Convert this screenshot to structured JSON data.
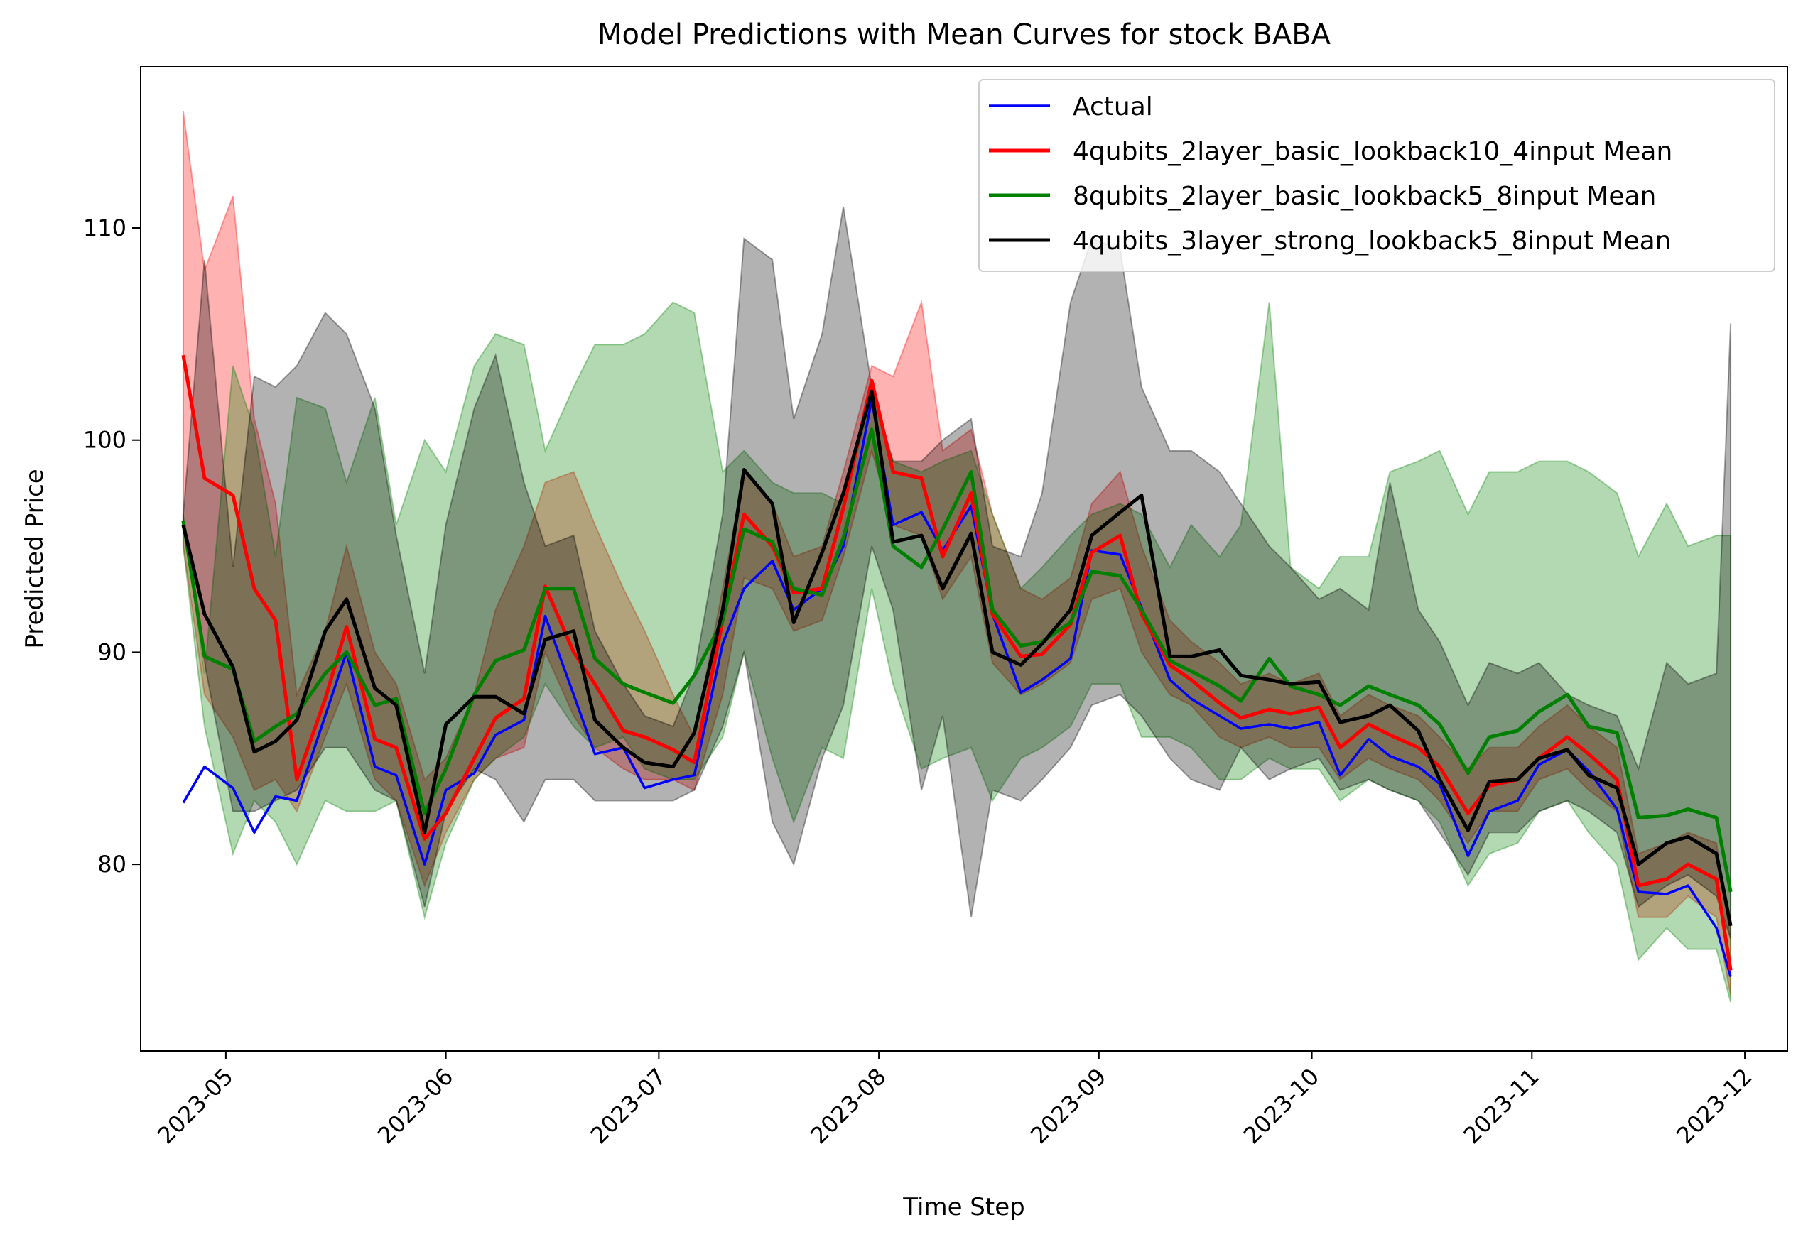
{
  "chart_data": {
    "type": "line",
    "title": "Model Predictions with Mean Curves for stock BABA",
    "xlabel": "Time Step",
    "ylabel": "Predicted Price",
    "x_ticks": [
      "2023-05",
      "2023-06",
      "2023-07",
      "2023-08",
      "2023-09",
      "2023-10",
      "2023-11",
      "2023-12"
    ],
    "y_ticks": [
      80,
      90,
      100,
      110
    ],
    "xlim": [
      "2023-04-19",
      "2023-12-07"
    ],
    "ylim": [
      71.2,
      117.6
    ],
    "legend_position": "top-right",
    "grid": false,
    "band_opacity": 0.3,
    "x": [
      "2023-04-25",
      "2023-04-28",
      "2023-05-02",
      "2023-05-05",
      "2023-05-08",
      "2023-05-11",
      "2023-05-15",
      "2023-05-18",
      "2023-05-22",
      "2023-05-25",
      "2023-05-29",
      "2023-06-01",
      "2023-06-05",
      "2023-06-08",
      "2023-06-12",
      "2023-06-15",
      "2023-06-19",
      "2023-06-22",
      "2023-06-26",
      "2023-06-29",
      "2023-07-03",
      "2023-07-06",
      "2023-07-10",
      "2023-07-13",
      "2023-07-17",
      "2023-07-20",
      "2023-07-24",
      "2023-07-27",
      "2023-07-31",
      "2023-08-03",
      "2023-08-07",
      "2023-08-10",
      "2023-08-14",
      "2023-08-17",
      "2023-08-21",
      "2023-08-24",
      "2023-08-28",
      "2023-08-31",
      "2023-09-04",
      "2023-09-07",
      "2023-09-11",
      "2023-09-14",
      "2023-09-18",
      "2023-09-21",
      "2023-09-25",
      "2023-09-28",
      "2023-10-02",
      "2023-10-05",
      "2023-10-09",
      "2023-10-12",
      "2023-10-16",
      "2023-10-19",
      "2023-10-23",
      "2023-10-26",
      "2023-10-30",
      "2023-11-02",
      "2023-11-06",
      "2023-11-09",
      "2023-11-13",
      "2023-11-16",
      "2023-11-20",
      "2023-11-23",
      "2023-11-27",
      "2023-11-29"
    ],
    "series": [
      {
        "name": "Actual",
        "color": "#0000ff",
        "values": [
          82.9,
          84.6,
          83.6,
          81.5,
          83.2,
          83.0,
          87.0,
          90.0,
          84.6,
          84.2,
          80.0,
          83.5,
          84.3,
          86.1,
          86.8,
          91.7,
          88.0,
          85.2,
          85.5,
          83.6,
          84.0,
          84.2,
          90.4,
          93.0,
          94.3,
          92.0,
          93.0,
          95.0,
          101.9,
          96.0,
          96.6,
          94.8,
          96.9,
          91.8,
          88.1,
          88.7,
          89.7,
          94.8,
          94.6,
          92.1,
          88.7,
          87.8,
          87.0,
          86.4,
          86.6,
          86.4,
          86.7,
          84.2,
          85.9,
          85.1,
          84.6,
          83.8,
          80.4,
          82.5,
          83.0,
          84.7,
          85.4,
          84.4,
          82.6,
          78.7,
          78.6,
          79.0,
          77.0,
          74.7
        ]
      },
      {
        "name": "4qubits_2layer_basic_lookback10_4input Mean",
        "color": "#ff0000",
        "values": [
          104.0,
          98.2,
          97.4,
          93.0,
          91.5,
          84.0,
          87.8,
          91.2,
          85.9,
          85.5,
          81.2,
          82.4,
          85.0,
          86.9,
          87.8,
          93.1,
          90.0,
          88.5,
          86.3,
          86.0,
          85.4,
          84.8,
          91.5,
          96.5,
          95.0,
          92.8,
          93.0,
          96.8,
          102.8,
          98.5,
          98.2,
          94.5,
          97.5,
          91.8,
          89.8,
          89.9,
          91.3,
          94.7,
          95.5,
          91.8,
          89.4,
          88.7,
          87.6,
          86.9,
          87.3,
          87.1,
          87.4,
          85.5,
          86.6,
          86.1,
          85.5,
          84.6,
          82.4,
          83.7,
          84.0,
          85.0,
          86.0,
          85.2,
          84.0,
          79.0,
          79.3,
          80.0,
          79.3,
          75.0
        ]
      },
      {
        "name": "8qubits_2layer_basic_lookback5_8input Mean",
        "color": "#008000",
        "values": [
          96.2,
          89.8,
          89.2,
          85.8,
          86.5,
          87.1,
          89.0,
          90.0,
          87.5,
          87.8,
          82.4,
          84.5,
          88.0,
          89.6,
          90.1,
          93.0,
          93.0,
          89.7,
          88.5,
          88.1,
          87.6,
          88.9,
          91.5,
          95.8,
          95.2,
          93.0,
          92.7,
          95.4,
          100.5,
          95.0,
          94.0,
          95.8,
          98.5,
          92.0,
          90.3,
          90.5,
          91.4,
          93.8,
          93.6,
          92.0,
          89.6,
          89.1,
          88.4,
          87.7,
          89.7,
          88.4,
          88.0,
          87.5,
          88.4,
          88.0,
          87.5,
          86.6,
          84.3,
          86.0,
          86.3,
          87.2,
          88.0,
          86.5,
          86.2,
          82.2,
          82.3,
          82.6,
          82.2,
          78.7
        ]
      },
      {
        "name": "4qubits_3layer_strong_lookback5_8input Mean",
        "color": "#000000",
        "values": [
          96.0,
          91.8,
          89.3,
          85.3,
          85.8,
          86.8,
          91.0,
          92.5,
          88.3,
          87.5,
          81.5,
          86.6,
          87.9,
          87.9,
          87.1,
          90.6,
          91.0,
          86.8,
          85.5,
          84.8,
          84.6,
          86.2,
          92.0,
          98.6,
          97.0,
          91.4,
          94.7,
          97.5,
          102.3,
          95.2,
          95.5,
          93.0,
          95.6,
          90.0,
          89.4,
          90.4,
          92.0,
          95.5,
          96.6,
          97.4,
          89.8,
          89.8,
          90.1,
          88.9,
          88.7,
          88.5,
          88.6,
          86.7,
          87.0,
          87.5,
          86.3,
          84.0,
          81.6,
          83.9,
          84.0,
          85.0,
          85.4,
          84.2,
          83.6,
          80.0,
          81.0,
          81.3,
          80.5,
          77.1
        ]
      }
    ],
    "bands": [
      {
        "series": "4qubits_2layer_basic_lookback10_4input Mean",
        "color": "#ff0000",
        "lower": [
          95.0,
          88.0,
          86.0,
          83.5,
          84.0,
          82.5,
          86.0,
          88.5,
          84.0,
          83.0,
          79.0,
          81.5,
          84.0,
          85.0,
          85.5,
          90.0,
          87.0,
          85.5,
          84.5,
          84.0,
          84.0,
          83.5,
          88.0,
          93.5,
          93.0,
          91.0,
          91.5,
          94.5,
          99.5,
          96.0,
          95.5,
          92.5,
          94.5,
          89.5,
          88.0,
          88.5,
          89.5,
          92.5,
          93.0,
          90.0,
          88.0,
          87.5,
          86.0,
          85.5,
          86.0,
          85.5,
          85.5,
          84.0,
          85.0,
          84.5,
          84.0,
          83.0,
          81.0,
          82.5,
          82.5,
          84.0,
          84.5,
          83.5,
          82.5,
          77.5,
          77.5,
          78.5,
          77.5,
          73.8
        ],
        "upper": [
          115.5,
          108.0,
          111.5,
          101.0,
          97.0,
          88.0,
          91.0,
          95.0,
          90.0,
          88.5,
          84.0,
          85.0,
          88.0,
          92.0,
          95.0,
          98.0,
          98.5,
          96.0,
          93.0,
          91.0,
          88.0,
          86.0,
          93.0,
          98.5,
          97.0,
          94.5,
          95.0,
          98.5,
          103.5,
          103.0,
          106.5,
          99.5,
          100.5,
          96.5,
          93.0,
          92.5,
          93.5,
          97.0,
          98.5,
          95.0,
          91.5,
          90.5,
          89.5,
          88.5,
          89.0,
          88.5,
          89.0,
          87.0,
          88.0,
          87.5,
          87.0,
          86.0,
          84.5,
          85.5,
          85.5,
          86.5,
          87.5,
          86.5,
          85.5,
          80.5,
          81.0,
          81.5,
          81.0,
          76.5
        ]
      },
      {
        "series": "8qubits_2layer_basic_lookback5_8input Mean",
        "color": "#008000",
        "lower": [
          95.0,
          86.5,
          80.5,
          83.0,
          82.0,
          80.0,
          83.0,
          82.5,
          82.5,
          83.0,
          77.5,
          81.0,
          84.0,
          85.0,
          86.0,
          88.5,
          86.5,
          85.5,
          86.0,
          84.5,
          84.0,
          84.0,
          86.0,
          90.0,
          85.0,
          82.0,
          85.5,
          85.0,
          93.0,
          88.5,
          84.5,
          85.0,
          85.5,
          83.0,
          85.0,
          85.5,
          86.5,
          88.5,
          88.5,
          86.0,
          86.0,
          85.5,
          84.0,
          84.0,
          85.0,
          84.5,
          84.5,
          83.0,
          84.0,
          83.5,
          83.0,
          82.0,
          79.0,
          80.5,
          81.0,
          82.5,
          83.0,
          81.5,
          80.0,
          75.5,
          77.0,
          76.0,
          76.0,
          73.5
        ],
        "upper": [
          96.5,
          89.0,
          103.5,
          100.5,
          94.5,
          102.0,
          101.5,
          98.0,
          102.0,
          96.0,
          100.0,
          98.5,
          103.5,
          105.0,
          104.5,
          99.5,
          102.5,
          104.5,
          104.5,
          105.0,
          106.5,
          106.0,
          98.5,
          99.5,
          98.0,
          97.5,
          97.5,
          97.0,
          102.0,
          99.0,
          98.5,
          99.0,
          99.5,
          96.5,
          93.0,
          94.0,
          95.5,
          96.5,
          97.0,
          96.5,
          94.0,
          96.0,
          94.5,
          96.0,
          106.5,
          94.0,
          93.0,
          94.5,
          94.5,
          98.5,
          99.0,
          99.5,
          96.5,
          98.5,
          98.5,
          99.0,
          99.0,
          98.5,
          97.5,
          94.5,
          97.0,
          95.0,
          95.5,
          95.5
        ]
      },
      {
        "series": "4qubits_3layer_strong_lookback5_8input Mean",
        "color": "#000000",
        "lower": [
          96.0,
          89.5,
          82.5,
          82.5,
          83.0,
          83.5,
          85.5,
          85.5,
          83.5,
          83.0,
          78.0,
          82.5,
          84.5,
          84.0,
          82.0,
          84.0,
          84.0,
          83.0,
          83.0,
          83.0,
          83.0,
          83.5,
          86.5,
          90.0,
          82.0,
          80.0,
          85.0,
          87.5,
          95.0,
          92.0,
          83.5,
          87.0,
          77.5,
          83.5,
          83.0,
          84.0,
          85.5,
          87.5,
          88.0,
          87.0,
          85.0,
          84.0,
          83.5,
          85.5,
          84.0,
          84.5,
          85.0,
          83.5,
          84.0,
          83.5,
          83.0,
          81.5,
          79.5,
          81.5,
          81.5,
          82.5,
          83.0,
          82.5,
          81.5,
          78.0,
          79.0,
          79.5,
          78.5,
          76.5
        ],
        "upper": [
          96.5,
          108.5,
          94.0,
          103.0,
          102.5,
          103.5,
          106.0,
          105.0,
          101.5,
          95.5,
          89.0,
          96.0,
          101.5,
          104.0,
          98.0,
          95.0,
          95.5,
          91.0,
          88.5,
          87.0,
          86.5,
          89.0,
          96.5,
          109.5,
          108.5,
          101.0,
          105.0,
          111.0,
          102.5,
          99.0,
          99.0,
          100.0,
          101.0,
          95.0,
          94.5,
          97.5,
          106.5,
          109.5,
          109.0,
          102.5,
          99.5,
          99.5,
          98.5,
          97.0,
          95.0,
          94.0,
          92.5,
          93.0,
          92.0,
          98.0,
          92.0,
          90.5,
          87.5,
          89.5,
          89.0,
          89.5,
          88.0,
          87.5,
          87.0,
          84.5,
          89.5,
          88.5,
          89.0,
          105.5
        ]
      }
    ]
  }
}
